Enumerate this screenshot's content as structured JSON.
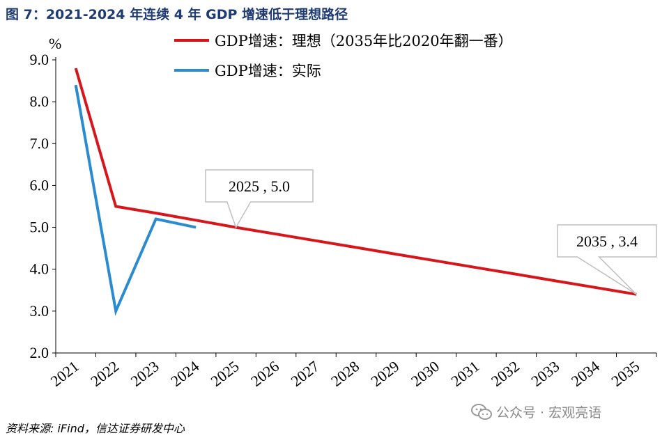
{
  "title": "图 7：2021-2024 年连续 4 年 GDP 增速低于理想路径",
  "source": "资料来源: iFind，信达证券研发中心",
  "watermark": "公众号 · 宏观亮语",
  "chart_data": {
    "type": "line",
    "unit": "%",
    "categories": [
      "2021",
      "2022",
      "2023",
      "2024",
      "2025",
      "2026",
      "2027",
      "2028",
      "2029",
      "2030",
      "2031",
      "2032",
      "2033",
      "2034",
      "2035"
    ],
    "ylim": [
      2.0,
      9.0
    ],
    "yticks": [
      "2.0",
      "3.0",
      "4.0",
      "5.0",
      "6.0",
      "7.0",
      "8.0",
      "9.0"
    ],
    "legend_position": "top",
    "series": [
      {
        "name": "GDP增速：理想（2035年比2020年翻一番）",
        "color": "#d7161c",
        "x": [
          "2021",
          "2022",
          "2023",
          "2024",
          "2025",
          "2026",
          "2027",
          "2028",
          "2029",
          "2030",
          "2031",
          "2032",
          "2033",
          "2034",
          "2035"
        ],
        "values": [
          8.8,
          5.5,
          5.34,
          5.17,
          5.0,
          4.84,
          4.68,
          4.52,
          4.36,
          4.2,
          4.04,
          3.88,
          3.72,
          3.56,
          3.4
        ]
      },
      {
        "name": "GDP增速：实际",
        "color": "#2a8bd0",
        "x": [
          "2021",
          "2022",
          "2023",
          "2024"
        ],
        "values": [
          8.4,
          3.0,
          5.2,
          5.0
        ]
      }
    ],
    "callouts": [
      {
        "label": "2025 , 5.0",
        "x": "2025",
        "y": 5.0
      },
      {
        "label": "2035 , 3.4",
        "x": "2035",
        "y": 3.4
      }
    ]
  }
}
